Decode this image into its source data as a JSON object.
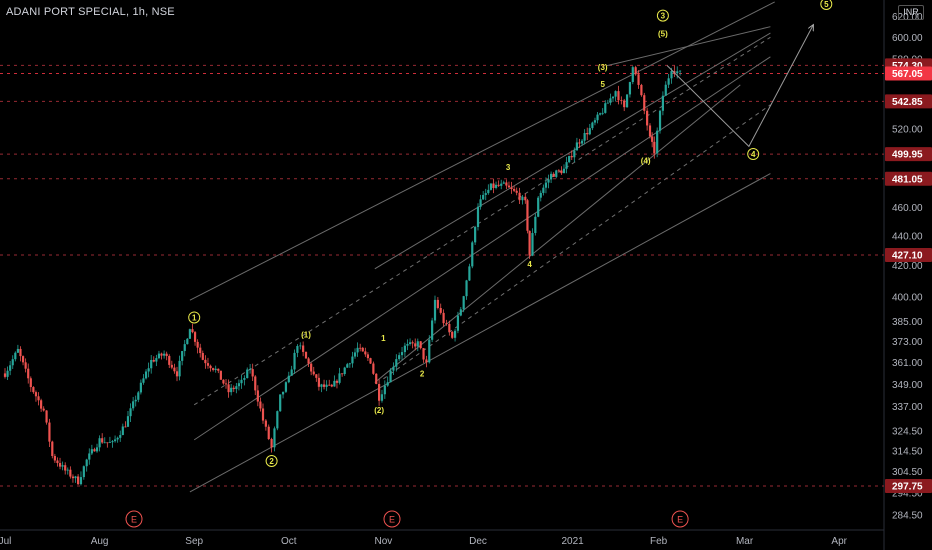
{
  "title": "ADANI PORT SPECIAL, 1h, NSE",
  "currency": "INR",
  "colors": {
    "up": "#26a69a",
    "down": "#ef5350",
    "dashed_red": "#b2323c",
    "channel": "#6b6b6b",
    "wave": "#e8e84a",
    "axis_text": "#b2b5be",
    "label_dark": "#8b1a1f",
    "label_current": "#f23645"
  },
  "chart_data": {
    "type": "candlestick",
    "title": "ADANI PORT SPECIAL, 1h, NSE",
    "y_scale": "log",
    "ylim": [
      278,
      632
    ],
    "x_ticks": [
      "Jul",
      "Aug",
      "Sep",
      "Oct",
      "Nov",
      "Dec",
      "2021",
      "Feb",
      "Mar",
      "Apr"
    ],
    "x_tick_index": [
      0,
      22,
      44,
      66,
      88,
      110,
      132,
      152,
      172,
      194
    ],
    "y_ticks": [
      "620.00",
      "600.00",
      "580.00",
      "520.00",
      "460.00",
      "440.00",
      "420.00",
      "400.00",
      "385.00",
      "373.00",
      "361.00",
      "349.00",
      "337.00",
      "324.50",
      "314.50",
      "304.50",
      "294.50",
      "284.50"
    ],
    "price_levels": [
      {
        "value": "574.30",
        "style": "dark"
      },
      {
        "value": "567.05",
        "style": "current"
      },
      {
        "value": "542.85",
        "style": "dark"
      },
      {
        "value": "499.95",
        "style": "dark"
      },
      {
        "value": "481.05",
        "style": "dark"
      },
      {
        "value": "427.10",
        "style": "dark"
      },
      {
        "value": "297.75",
        "style": "dark"
      }
    ],
    "price_path": [
      [
        0,
        355
      ],
      [
        3,
        368
      ],
      [
        6,
        348
      ],
      [
        9,
        335
      ],
      [
        11,
        312
      ],
      [
        14,
        305
      ],
      [
        17,
        300
      ],
      [
        19,
        310
      ],
      [
        22,
        320
      ],
      [
        25,
        318
      ],
      [
        28,
        328
      ],
      [
        31,
        345
      ],
      [
        34,
        362
      ],
      [
        37,
        366
      ],
      [
        40,
        355
      ],
      [
        43,
        382
      ],
      [
        46,
        363
      ],
      [
        49,
        357
      ],
      [
        52,
        345
      ],
      [
        55,
        350
      ],
      [
        57,
        358
      ],
      [
        60,
        330
      ],
      [
        62,
        316
      ],
      [
        64,
        342
      ],
      [
        66,
        352
      ],
      [
        68,
        372
      ],
      [
        70,
        363
      ],
      [
        73,
        348
      ],
      [
        76,
        347
      ],
      [
        79,
        358
      ],
      [
        82,
        369
      ],
      [
        85,
        362
      ],
      [
        87,
        342
      ],
      [
        89,
        352
      ],
      [
        91,
        364
      ],
      [
        93,
        370
      ],
      [
        96,
        372
      ],
      [
        98,
        360
      ],
      [
        100,
        398
      ],
      [
        102,
        385
      ],
      [
        104,
        375
      ],
      [
        106,
        393
      ],
      [
        108,
        420
      ],
      [
        110,
        462
      ],
      [
        113,
        475
      ],
      [
        116,
        476
      ],
      [
        119,
        470
      ],
      [
        121,
        463
      ],
      [
        122,
        427
      ],
      [
        124,
        468
      ],
      [
        127,
        484
      ],
      [
        130,
        488
      ],
      [
        133,
        508
      ],
      [
        136,
        520
      ],
      [
        139,
        535
      ],
      [
        142,
        552
      ],
      [
        144,
        536
      ],
      [
        146,
        575
      ],
      [
        148,
        546
      ],
      [
        150,
        512
      ],
      [
        151,
        502
      ],
      [
        153,
        548
      ],
      [
        155,
        572
      ],
      [
        157,
        567
      ]
    ],
    "wave_labels": [
      {
        "text": "1",
        "circle": true,
        "x": 44,
        "y": 382,
        "pos": "above"
      },
      {
        "text": "2",
        "circle": true,
        "x": 62,
        "y": 314,
        "pos": "below"
      },
      {
        "text": "(1)",
        "circle": false,
        "x": 70,
        "y": 372,
        "pos": "above"
      },
      {
        "text": "(2)",
        "circle": false,
        "x": 87,
        "y": 340,
        "pos": "below"
      },
      {
        "text": "1",
        "circle": false,
        "x": 88,
        "y": 370,
        "pos": "above"
      },
      {
        "text": "2",
        "circle": false,
        "x": 97,
        "y": 360,
        "pos": "below"
      },
      {
        "text": "3",
        "circle": false,
        "x": 117,
        "y": 483,
        "pos": "above"
      },
      {
        "text": "4",
        "circle": false,
        "x": 122,
        "y": 427,
        "pos": "below"
      },
      {
        "text": "(3)",
        "circle": false,
        "x": 139,
        "y": 565,
        "pos": "above"
      },
      {
        "text": "5",
        "circle": false,
        "x": 139,
        "y": 550,
        "pos": "above"
      },
      {
        "text": "(4)",
        "circle": false,
        "x": 149,
        "y": 502,
        "pos": "below"
      },
      {
        "text": "(5)",
        "circle": false,
        "x": 153,
        "y": 595,
        "pos": "above"
      },
      {
        "text": "3",
        "circle": true,
        "x": 153,
        "y": 612,
        "pos": "above"
      },
      {
        "text": "4",
        "circle": true,
        "x": 174,
        "y": 500,
        "pos": "center"
      },
      {
        "text": "5",
        "circle": true,
        "x": 191,
        "y": 632,
        "pos": "center"
      }
    ],
    "channel_lines": [
      [
        [
          44,
          320
        ],
        [
          178,
          582
        ]
      ],
      [
        [
          43,
          398
        ],
        [
          179,
          634
        ]
      ],
      [
        [
          43,
          295
        ],
        [
          178,
          485
        ]
      ],
      [
        [
          86,
          418
        ],
        [
          178,
          604
        ]
      ],
      [
        [
          86,
          350
        ],
        [
          171,
          557
        ]
      ],
      [
        [
          140,
          574
        ],
        [
          178,
          610
        ]
      ]
    ],
    "dashed_trend_lines": [
      [
        [
          44,
          338
        ],
        [
          178,
          600
        ]
      ],
      [
        [
          88,
          352
        ],
        [
          178,
          540
        ]
      ]
    ],
    "projection": [
      [
        154,
        574
      ],
      [
        173,
        506
      ],
      [
        188,
        612
      ]
    ],
    "earnings_markers": [
      30,
      90,
      157
    ],
    "earnings_label": "E"
  }
}
